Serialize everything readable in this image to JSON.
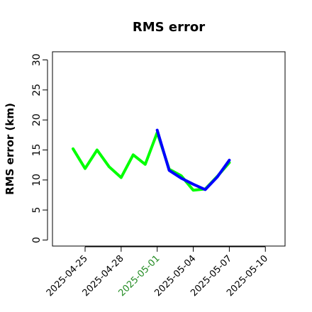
{
  "chart_data": {
    "type": "line",
    "title": "RMS error",
    "xlabel": "",
    "ylabel": "RMS error (km)",
    "ylim": [
      0,
      30
    ],
    "y_ticks": [
      0,
      5,
      10,
      15,
      20,
      25,
      30
    ],
    "xlim": [
      "2025-04-22",
      "2025-05-12"
    ],
    "x_ticks": [
      {
        "date": "2025-04-25",
        "label": "2025-04-25",
        "color": "#000000"
      },
      {
        "date": "2025-04-28",
        "label": "2025-04-28",
        "color": "#000000"
      },
      {
        "date": "2025-05-01",
        "label": "2025-05-01",
        "color": "#228B22"
      },
      {
        "date": "2025-05-04",
        "label": "2025-05-04",
        "color": "#000000"
      },
      {
        "date": "2025-05-07",
        "label": "2025-05-07",
        "color": "#000000"
      },
      {
        "date": "2025-05-10",
        "label": "2025-05-10",
        "color": "#000000"
      }
    ],
    "grid": false,
    "legend": "none",
    "series": [
      {
        "color": "#00FF00",
        "x": [
          "2025-04-24",
          "2025-04-25",
          "2025-04-26",
          "2025-04-27",
          "2025-04-28",
          "2025-04-29",
          "2025-04-30",
          "2025-05-01",
          "2025-05-02",
          "2025-05-03",
          "2025-05-04",
          "2025-05-05",
          "2025-05-06",
          "2025-05-07"
        ],
        "y": [
          15.2,
          11.9,
          15.0,
          12.2,
          10.4,
          14.2,
          12.6,
          17.9,
          11.8,
          10.7,
          8.3,
          8.5,
          10.6,
          12.9
        ]
      },
      {
        "color": "#0000FF",
        "x": [
          "2025-05-01",
          "2025-05-02",
          "2025-05-03",
          "2025-05-04",
          "2025-05-05",
          "2025-05-06",
          "2025-05-07"
        ],
        "y": [
          18.3,
          11.6,
          10.3,
          9.3,
          8.4,
          10.5,
          13.3
        ]
      }
    ]
  }
}
